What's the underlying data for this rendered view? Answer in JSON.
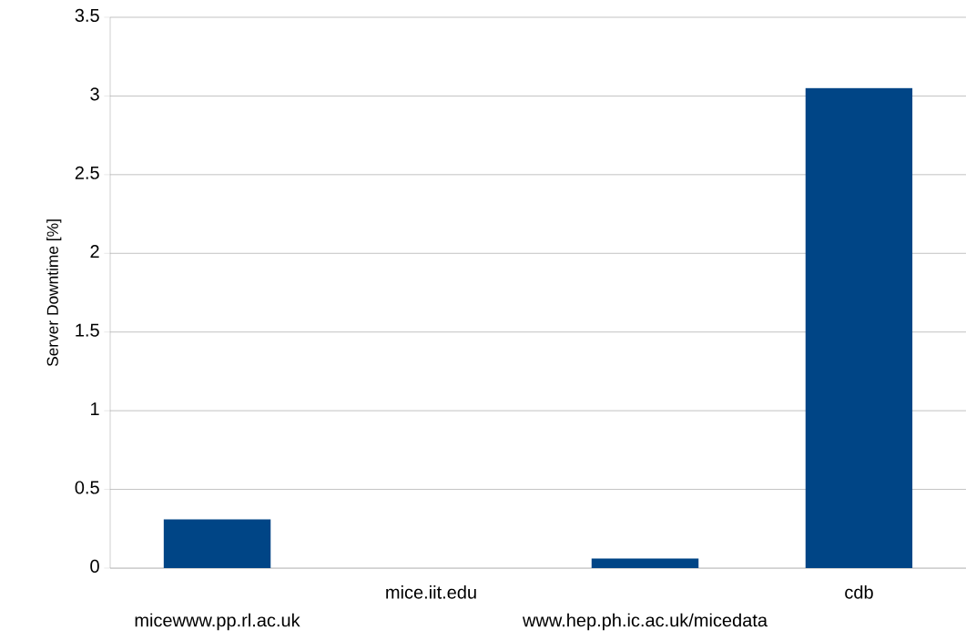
{
  "chart_data": {
    "type": "bar",
    "ylabel": "Server Downtime [%]",
    "categories": [
      "micewww.pp.rl.ac.uk",
      "mice.iit.edu",
      "www.hep.ph.ic.ac.uk/micedata",
      "cdb"
    ],
    "values": [
      0.31,
      0,
      0.06,
      3.05
    ],
    "color": "#004586",
    "ylim": [
      0,
      3.5
    ],
    "yticks": [
      0,
      0.5,
      1,
      1.5,
      2,
      2.5,
      3,
      3.5
    ],
    "grid": "y"
  }
}
